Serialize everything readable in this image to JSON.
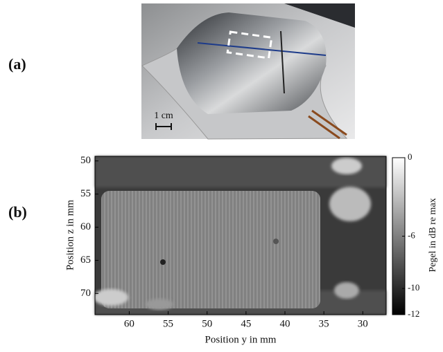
{
  "panels": [
    {
      "label": "(a)",
      "scale_label": "1 cm"
    },
    {
      "label": "(b)",
      "xlabel": "Position y in mm",
      "ylabel": "Position z in mm",
      "colorbar_label": "Pegel in dB re max",
      "xlim": [
        64.4,
        27
      ],
      "xticks": [
        60,
        55,
        50,
        45,
        40,
        35,
        30
      ],
      "ylim": [
        49.3,
        73.2
      ],
      "yticks": [
        50,
        55,
        60,
        65,
        70
      ],
      "clim": [
        -12,
        0
      ],
      "cticks": [
        0,
        -6,
        -10,
        -12
      ]
    }
  ]
}
